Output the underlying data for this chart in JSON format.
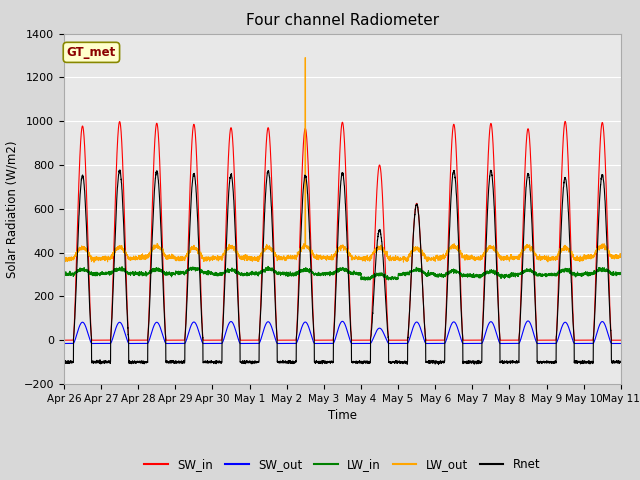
{
  "title": "Four channel Radiometer",
  "xlabel": "Time",
  "ylabel": "Solar Radiation (W/m2)",
  "ylim": [
    -200,
    1400
  ],
  "annotation": "GT_met",
  "x_tick_labels": [
    "Apr 26",
    "Apr 27",
    "Apr 28",
    "Apr 29",
    "Apr 30",
    "May 1",
    "May 2",
    "May 3",
    "May 4",
    "May 5",
    "May 6",
    "May 7",
    "May 8",
    "May 9",
    "May 10",
    "May 11"
  ],
  "legend_labels": [
    "SW_in",
    "SW_out",
    "LW_in",
    "LW_out",
    "Rnet"
  ],
  "line_colors": [
    "red",
    "blue",
    "green",
    "orange",
    "black"
  ],
  "background_color": "#d8d8d8",
  "plot_bg_color": "#e8e8e8",
  "n_days": 15,
  "pts_per_day": 288,
  "SW_in_peak": 980,
  "SW_out_base": -15,
  "SW_out_peak": 100,
  "LW_in_base": 300,
  "LW_out_base": 375,
  "Rnet_night": -100,
  "Rnet_peak": 760,
  "spike_day": 6,
  "spike_value": 1290
}
